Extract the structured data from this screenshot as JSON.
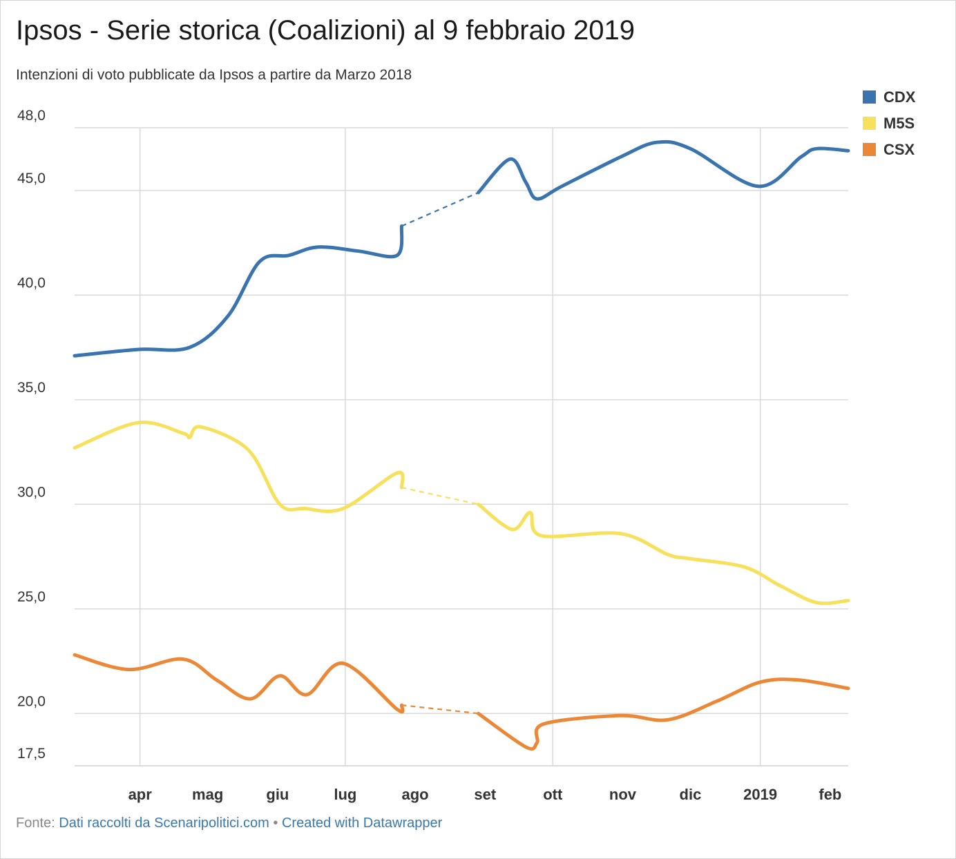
{
  "header": {
    "title": "Ipsos - Serie storica (Coalizioni) al 9 febbraio 2019",
    "subtitle": "Intenzioni di voto pubblicate da Ipsos a partire da Marzo 2018"
  },
  "footer": {
    "source_prefix": "Fonte:",
    "source_link": "Dati raccolti da Scenaripolitici.com",
    "separator": "•",
    "credit_link": "Created with Datawrapper"
  },
  "chart_data": {
    "type": "line",
    "title": "Ipsos - Serie storica (Coalizioni) al 9 febbraio 2019",
    "subtitle": "Intenzioni di voto pubblicate da Ipsos a partire da Marzo 2018",
    "xlabel": "",
    "ylabel": "",
    "x_range": [
      "2018-03-03",
      "2019-02-09"
    ],
    "ylim": [
      17.5,
      48.0
    ],
    "y_ticks": [
      17.5,
      20.0,
      25.0,
      30.0,
      35.0,
      40.0,
      45.0,
      48.0
    ],
    "y_tick_labels": [
      "17,5",
      "20,0",
      "25,0",
      "30,0",
      "35,0",
      "40,0",
      "45,0",
      "48,0"
    ],
    "x_ticks": [
      {
        "date": "2018-04-01",
        "label": "apr"
      },
      {
        "date": "2018-05-01",
        "label": "mag"
      },
      {
        "date": "2018-06-01",
        "label": "giu"
      },
      {
        "date": "2018-07-01",
        "label": "lug"
      },
      {
        "date": "2018-08-01",
        "label": "ago"
      },
      {
        "date": "2018-09-01",
        "label": "set"
      },
      {
        "date": "2018-10-01",
        "label": "ott"
      },
      {
        "date": "2018-11-01",
        "label": "nov"
      },
      {
        "date": "2018-12-01",
        "label": "dic"
      },
      {
        "date": "2019-01-01",
        "label": "2019"
      },
      {
        "date": "2019-02-01",
        "label": "feb"
      }
    ],
    "grid": true,
    "legend_position": "top-right",
    "gaps": [
      {
        "from": "2018-07-26",
        "to": "2018-08-29",
        "style": "dashed"
      }
    ],
    "series": [
      {
        "name": "CDX",
        "color": "#3a74ae",
        "points": [
          [
            "2018-03-03",
            37.1
          ],
          [
            "2018-03-31",
            37.4
          ],
          [
            "2018-04-23",
            37.5
          ],
          [
            "2018-05-10",
            39.0
          ],
          [
            "2018-05-24",
            41.6
          ],
          [
            "2018-06-06",
            41.9
          ],
          [
            "2018-06-19",
            42.3
          ],
          [
            "2018-07-07",
            42.1
          ],
          [
            "2018-07-24",
            41.9
          ],
          [
            "2018-07-26",
            43.3
          ],
          [
            "2018-08-29",
            44.9
          ],
          [
            "2018-09-12",
            46.5
          ],
          [
            "2018-09-19",
            45.4
          ],
          [
            "2018-09-24",
            44.6
          ],
          [
            "2018-10-05",
            45.2
          ],
          [
            "2018-10-31",
            46.6
          ],
          [
            "2018-11-16",
            47.3
          ],
          [
            "2018-12-01",
            47.0
          ],
          [
            "2018-12-31",
            45.2
          ],
          [
            "2019-01-19",
            46.6
          ],
          [
            "2019-01-26",
            47.0
          ],
          [
            "2019-02-09",
            46.9
          ]
        ]
      },
      {
        "name": "M5S",
        "color": "#f7e15c",
        "points": [
          [
            "2018-03-03",
            32.7
          ],
          [
            "2018-03-31",
            33.9
          ],
          [
            "2018-04-20",
            33.4
          ],
          [
            "2018-04-23",
            33.2
          ],
          [
            "2018-04-28",
            33.7
          ],
          [
            "2018-05-19",
            32.6
          ],
          [
            "2018-06-02",
            30.0
          ],
          [
            "2018-06-13",
            29.8
          ],
          [
            "2018-06-30",
            29.8
          ],
          [
            "2018-07-24",
            31.5
          ],
          [
            "2018-07-26",
            30.8
          ],
          [
            "2018-08-29",
            30.0
          ],
          [
            "2018-09-13",
            28.8
          ],
          [
            "2018-09-21",
            29.6
          ],
          [
            "2018-09-26",
            28.5
          ],
          [
            "2018-10-31",
            28.6
          ],
          [
            "2018-11-21",
            27.6
          ],
          [
            "2018-12-01",
            27.4
          ],
          [
            "2018-12-25",
            27.0
          ],
          [
            "2019-01-10",
            26.1
          ],
          [
            "2019-01-26",
            25.3
          ],
          [
            "2019-02-09",
            25.4
          ]
        ]
      },
      {
        "name": "CSX",
        "color": "#ea8838",
        "points": [
          [
            "2018-03-03",
            22.8
          ],
          [
            "2018-03-27",
            22.1
          ],
          [
            "2018-04-20",
            22.6
          ],
          [
            "2018-05-05",
            21.6
          ],
          [
            "2018-05-20",
            20.7
          ],
          [
            "2018-06-02",
            21.8
          ],
          [
            "2018-06-14",
            20.9
          ],
          [
            "2018-06-30",
            22.4
          ],
          [
            "2018-07-24",
            20.2
          ],
          [
            "2018-07-26",
            20.4
          ],
          [
            "2018-08-29",
            20.0
          ],
          [
            "2018-09-19",
            18.4
          ],
          [
            "2018-09-24",
            18.6
          ],
          [
            "2018-09-27",
            19.5
          ],
          [
            "2018-10-31",
            19.9
          ],
          [
            "2018-11-21",
            19.7
          ],
          [
            "2018-12-13",
            20.6
          ],
          [
            "2019-01-01",
            21.5
          ],
          [
            "2019-01-18",
            21.6
          ],
          [
            "2019-02-09",
            21.2
          ]
        ]
      }
    ]
  }
}
